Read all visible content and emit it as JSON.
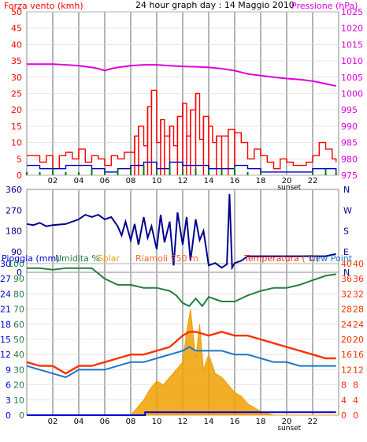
{
  "header": {
    "left_label": "Forza vento (kmh)",
    "title": "24 hour graph day : 14 Maggio 2010",
    "right_label": "Pressione (hPa)"
  },
  "bottom_header": {
    "rain_label": "Pioggia (mm)",
    "humidity_label": "Umidita %",
    "solar_label": "Solar",
    "station_label": "Riamoli 550 m",
    "temp_label": "Temperatura (°C)",
    "dew_label": "Dew Point"
  },
  "x_ticks": [
    "02",
    "04",
    "06",
    "08",
    "10",
    "12",
    "14",
    "16",
    "18",
    "20",
    "22"
  ],
  "sunset_label": "sunset",
  "colors": {
    "wind_red": "#ff0000",
    "wind_blue": "#0000cc",
    "wind_green": "#008000",
    "pressure": "#e000e0",
    "direction": "#000090",
    "humidity": "#208040",
    "solar": "#f0a000",
    "temperature": "#ff3000",
    "dew_point": "#1e78c8",
    "rain": "#0000dd",
    "grid": "#b4b4b4"
  },
  "chart_data": [
    {
      "type": "line",
      "title": "24 hour graph day : 14 Maggio 2010",
      "ylabel_left": "Forza vento (kmh)",
      "ylabel_right": "Pressione (hPa)",
      "y_left_ticks": [
        "50",
        "45",
        "40",
        "35",
        "30",
        "25",
        "20",
        "15",
        "10",
        "5",
        "0"
      ],
      "y_right_ticks": [
        "1025",
        "1020",
        "1015",
        "1010",
        "1005",
        "1000",
        "995",
        "990",
        "985",
        "980",
        "975"
      ],
      "ylim_left": [
        0,
        50
      ],
      "ylim_right": [
        975,
        1025
      ],
      "xlim": [
        0,
        24
      ],
      "series": [
        {
          "name": "Pressione (hPa)",
          "axis": "right",
          "x": [
            0,
            1,
            2,
            3,
            4,
            5,
            5.5,
            6,
            6.5,
            7,
            8,
            9,
            10,
            11,
            12,
            13,
            14,
            15,
            16,
            17,
            18,
            19,
            20,
            21,
            22,
            23,
            23.8
          ],
          "y": [
            1009,
            1009,
            1009,
            1008.8,
            1008.5,
            1008,
            1007.6,
            1007,
            1007.6,
            1008,
            1008.5,
            1008.8,
            1008.8,
            1008.5,
            1008.3,
            1008.2,
            1008,
            1007.6,
            1007,
            1006,
            1005.5,
            1005,
            1004.6,
            1004.3,
            1003.8,
            1003,
            1002.3
          ]
        },
        {
          "name": "Gust",
          "axis": "left",
          "x": [
            0,
            0.5,
            1,
            1.5,
            2,
            2.5,
            3,
            3.5,
            4,
            4.5,
            5,
            5.5,
            6,
            6.5,
            7,
            7.5,
            8,
            8.3,
            8.6,
            9,
            9.3,
            9.6,
            10,
            10.3,
            10.6,
            11,
            11.3,
            11.6,
            12,
            12.3,
            12.6,
            13,
            13.3,
            13.6,
            14,
            14.3,
            14.6,
            15,
            15.5,
            16,
            16.5,
            17,
            17.5,
            18,
            18.5,
            19,
            19.5,
            20,
            20.5,
            21,
            21.5,
            22,
            22.5,
            23,
            23.5,
            23.8
          ],
          "y": [
            6,
            6,
            4,
            6,
            2,
            6,
            7,
            5,
            8,
            4,
            6,
            5,
            3,
            6,
            5,
            7,
            7,
            12,
            15,
            9,
            21,
            26,
            10,
            17,
            12,
            15,
            9,
            18,
            22,
            12,
            20,
            25,
            11,
            18,
            15,
            10,
            12,
            12,
            14,
            13,
            10,
            5,
            8,
            6,
            4,
            2,
            5,
            4,
            3,
            3,
            4,
            6,
            10,
            8,
            5,
            4
          ]
        },
        {
          "name": "Average",
          "axis": "left",
          "x": [
            0,
            1,
            2,
            3,
            4,
            5,
            6,
            7,
            8,
            9,
            10,
            11,
            12,
            13,
            14,
            15,
            16,
            17,
            18,
            19,
            20,
            21,
            22,
            23,
            23.8
          ],
          "y": [
            3,
            2,
            2,
            3,
            3,
            2,
            1,
            2,
            3,
            4,
            2,
            4,
            3,
            3,
            2,
            2,
            3,
            2,
            1,
            1,
            1,
            1,
            2,
            2,
            1
          ]
        },
        {
          "name": "Calm",
          "axis": "left",
          "x": [
            0,
            1,
            2,
            3,
            4,
            5,
            6,
            7,
            8,
            9,
            10,
            11,
            12,
            13,
            14,
            15,
            16,
            17,
            18,
            19,
            20,
            21,
            22,
            23,
            23.8
          ],
          "y": [
            1,
            1,
            2,
            1,
            1,
            2,
            1,
            2,
            2,
            3,
            2,
            3,
            2,
            2,
            2,
            2,
            3,
            1,
            1,
            0,
            0,
            0,
            1,
            2,
            1
          ]
        }
      ]
    },
    {
      "type": "line",
      "ylabel_right": "N W S E N",
      "y_left_ticks": [
        "360",
        "270",
        "180",
        "90",
        "0"
      ],
      "y_right_ticks": [
        "N",
        "W",
        "S",
        "E",
        "N"
      ],
      "ylim": [
        0,
        360
      ],
      "xlim": [
        0,
        24
      ],
      "series": [
        {
          "name": "Direction",
          "x": [
            0,
            0.5,
            1,
            1.5,
            2,
            3,
            4,
            4.5,
            5,
            5.5,
            6,
            6.5,
            7,
            7.3,
            7.6,
            8,
            8.3,
            8.6,
            9,
            9.3,
            9.6,
            10,
            10.3,
            10.6,
            11,
            11.3,
            11.6,
            12,
            12.3,
            12.6,
            13,
            13.3,
            13.6,
            14,
            14.5,
            15,
            15.4,
            15.6,
            15.8,
            16,
            16.5,
            17,
            18,
            19,
            20,
            21,
            22,
            23,
            23.8
          ],
          "y": [
            210,
            205,
            215,
            200,
            205,
            210,
            230,
            250,
            240,
            250,
            230,
            240,
            200,
            160,
            220,
            140,
            210,
            120,
            240,
            150,
            200,
            100,
            250,
            130,
            220,
            30,
            260,
            120,
            240,
            50,
            230,
            140,
            180,
            30,
            40,
            20,
            35,
            340,
            20,
            40,
            50,
            70,
            70,
            70,
            70,
            70,
            70,
            70,
            80
          ]
        }
      ]
    },
    {
      "type": "line",
      "ylabel_left": "Pioggia (mm)",
      "ylabel_left2": "Umidita %",
      "ylabel_right": "Temperatura (°C)",
      "series_labels": [
        "Solar",
        "Riamoli 550 m",
        "Dew Point"
      ],
      "y_rain_ticks": [
        "30",
        "27",
        "24",
        "21",
        "18",
        "15",
        "12",
        "9",
        "6",
        "3",
        "0"
      ],
      "y_humidity_ticks": [
        "100",
        "90",
        "80",
        "70",
        "60",
        "50",
        "40",
        "30",
        "20",
        "10",
        "0"
      ],
      "y_temp_ticks": [
        "40",
        "36",
        "32",
        "28",
        "24",
        "20",
        "16",
        "12",
        "8",
        "4",
        "0"
      ],
      "y_temp_right2_ticks": [
        "40",
        "36",
        "32",
        "28",
        "24",
        "20",
        "16",
        "12",
        "8",
        "4",
        "0"
      ],
      "ylim_temp": [
        0,
        40
      ],
      "ylim_humidity": [
        0,
        100
      ],
      "ylim_rain": [
        0,
        30
      ],
      "xlim": [
        0,
        24
      ],
      "series": [
        {
          "name": "Umidita %",
          "axis": "humidity",
          "x": [
            0,
            1,
            2,
            3,
            4,
            5,
            6,
            7,
            8,
            9,
            10,
            11,
            11.5,
            12,
            12.5,
            13,
            13.5,
            14,
            15,
            16,
            17,
            18,
            19,
            20,
            21,
            22,
            23,
            23.8
          ],
          "y": [
            97,
            97,
            96,
            97,
            97,
            97,
            90,
            86,
            86,
            84,
            84,
            82,
            79,
            74,
            72,
            77,
            72,
            78,
            75,
            75,
            79,
            82,
            84,
            84,
            86,
            89,
            92,
            93
          ]
        },
        {
          "name": "Temperatura (°C)",
          "axis": "temp",
          "x": [
            0,
            1,
            2,
            3,
            4,
            5,
            6,
            7,
            8,
            9,
            10,
            11,
            12,
            12.5,
            13,
            14,
            15,
            16,
            17,
            18,
            19,
            20,
            21,
            22,
            23,
            23.8
          ],
          "y": [
            14,
            13,
            13,
            11,
            13,
            13,
            14,
            15,
            16,
            16,
            17,
            18,
            21,
            22,
            22,
            21,
            22,
            21,
            21,
            20,
            19,
            18,
            17,
            16,
            15,
            15
          ]
        },
        {
          "name": "Dew Point",
          "axis": "temp",
          "x": [
            0,
            1,
            2,
            3,
            4,
            5,
            6,
            7,
            8,
            9,
            10,
            11,
            12,
            12.5,
            13,
            14,
            15,
            16,
            17,
            18,
            19,
            20,
            21,
            22,
            23,
            23.8
          ],
          "y": [
            13,
            12,
            11,
            10,
            12,
            12,
            12,
            13,
            14,
            14,
            15,
            16,
            17,
            18,
            17,
            17,
            17,
            16,
            16,
            15,
            14,
            14,
            13,
            13,
            13,
            13
          ]
        },
        {
          "name": "Solar",
          "axis": "temp",
          "x": [
            0,
            8,
            8.5,
            9,
            9.5,
            10,
            10.5,
            11,
            11.5,
            12,
            12.3,
            12.6,
            13,
            13.3,
            13.6,
            14,
            14.5,
            15,
            15.5,
            16,
            16.5,
            17,
            17.5,
            18,
            18.5,
            19,
            24
          ],
          "y": [
            0,
            0,
            2,
            4,
            7,
            9,
            8,
            10,
            12,
            14,
            22,
            28,
            15,
            24,
            12,
            16,
            11,
            10,
            8,
            6,
            5,
            3,
            2,
            1,
            0.5,
            0,
            0
          ]
        },
        {
          "name": "Pioggia (mm)",
          "axis": "rain",
          "x": [
            0,
            9,
            9.1,
            23.8
          ],
          "y": [
            0,
            0,
            0.6,
            0.6
          ]
        }
      ]
    }
  ]
}
